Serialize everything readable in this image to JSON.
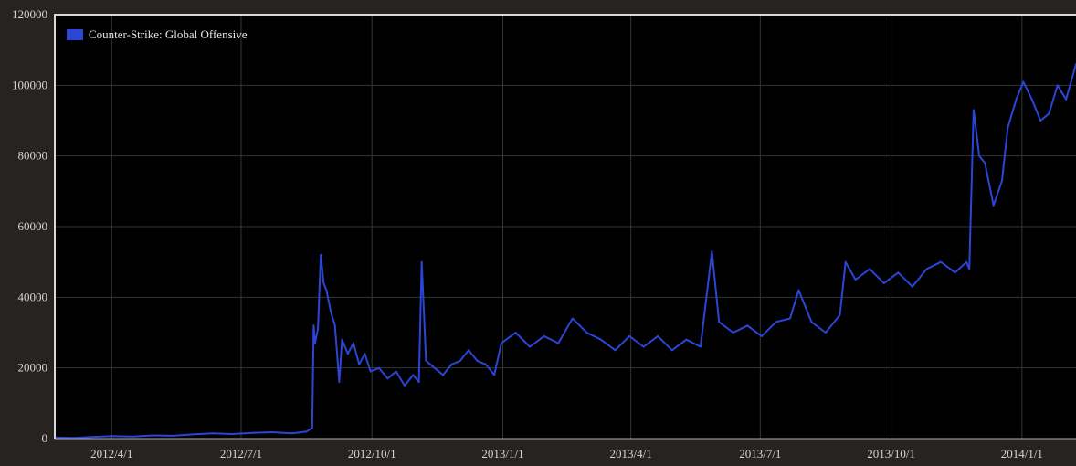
{
  "chart_data": {
    "type": "line",
    "title": "",
    "xlabel": "",
    "ylabel": "",
    "ylim": [
      0,
      120000
    ],
    "xlim": [
      "2012-02-21",
      "2014-02-08"
    ],
    "grid": true,
    "legend_position": "top-left",
    "y_ticks": [
      "0",
      "20000",
      "40000",
      "60000",
      "80000",
      "100000",
      "120000"
    ],
    "x_ticks": [
      {
        "date": "2012-04-01",
        "label": "2012/4/1"
      },
      {
        "date": "2012-07-01",
        "label": "2012/7/1"
      },
      {
        "date": "2012-10-01",
        "label": "2012/10/1"
      },
      {
        "date": "2013-01-01",
        "label": "2013/1/1"
      },
      {
        "date": "2013-04-01",
        "label": "2013/4/1"
      },
      {
        "date": "2013-07-01",
        "label": "2013/7/1"
      },
      {
        "date": "2013-10-01",
        "label": "2013/10/1"
      },
      {
        "date": "2014-01-01",
        "label": "2014/1/1"
      }
    ],
    "colors": {
      "line": "#2b45d6",
      "legend_swatch": "#2b45d6",
      "background": "#000000",
      "frame": "#d8d8d8"
    },
    "series": [
      {
        "name": "Counter-Strike: Global Offensive",
        "points": [
          [
            "2012-02-21",
            300
          ],
          [
            "2012-03-05",
            200
          ],
          [
            "2012-03-19",
            500
          ],
          [
            "2012-04-02",
            700
          ],
          [
            "2012-04-16",
            600
          ],
          [
            "2012-04-30",
            900
          ],
          [
            "2012-05-14",
            800
          ],
          [
            "2012-05-28",
            1200
          ],
          [
            "2012-06-11",
            1500
          ],
          [
            "2012-06-25",
            1300
          ],
          [
            "2012-07-09",
            1600
          ],
          [
            "2012-07-23",
            1800
          ],
          [
            "2012-08-06",
            1500
          ],
          [
            "2012-08-16",
            2000
          ],
          [
            "2012-08-20",
            3000
          ],
          [
            "2012-08-21",
            32000
          ],
          [
            "2012-08-22",
            27000
          ],
          [
            "2012-08-24",
            31000
          ],
          [
            "2012-08-26",
            52000
          ],
          [
            "2012-08-28",
            44000
          ],
          [
            "2012-08-30",
            42000
          ],
          [
            "2012-09-02",
            36000
          ],
          [
            "2012-09-05",
            32000
          ],
          [
            "2012-09-08",
            16000
          ],
          [
            "2012-09-10",
            28000
          ],
          [
            "2012-09-14",
            24000
          ],
          [
            "2012-09-18",
            27000
          ],
          [
            "2012-09-22",
            21000
          ],
          [
            "2012-09-26",
            24000
          ],
          [
            "2012-09-30",
            19000
          ],
          [
            "2012-10-06",
            20000
          ],
          [
            "2012-10-12",
            17000
          ],
          [
            "2012-10-18",
            19000
          ],
          [
            "2012-10-24",
            15000
          ],
          [
            "2012-10-30",
            18000
          ],
          [
            "2012-11-03",
            16000
          ],
          [
            "2012-11-05",
            50000
          ],
          [
            "2012-11-08",
            22000
          ],
          [
            "2012-11-14",
            20000
          ],
          [
            "2012-11-20",
            18000
          ],
          [
            "2012-11-26",
            21000
          ],
          [
            "2012-12-02",
            22000
          ],
          [
            "2012-12-08",
            25000
          ],
          [
            "2012-12-14",
            22000
          ],
          [
            "2012-12-20",
            21000
          ],
          [
            "2012-12-26",
            18000
          ],
          [
            "2012-12-31",
            27000
          ],
          [
            "2013-01-10",
            30000
          ],
          [
            "2013-01-20",
            26000
          ],
          [
            "2013-01-30",
            29000
          ],
          [
            "2013-02-09",
            27000
          ],
          [
            "2013-02-19",
            34000
          ],
          [
            "2013-03-01",
            30000
          ],
          [
            "2013-03-11",
            28000
          ],
          [
            "2013-03-21",
            25000
          ],
          [
            "2013-03-31",
            29000
          ],
          [
            "2013-04-10",
            26000
          ],
          [
            "2013-04-20",
            29000
          ],
          [
            "2013-04-30",
            25000
          ],
          [
            "2013-05-10",
            28000
          ],
          [
            "2013-05-20",
            26000
          ],
          [
            "2013-05-28",
            53000
          ],
          [
            "2013-06-02",
            33000
          ],
          [
            "2013-06-12",
            30000
          ],
          [
            "2013-06-22",
            32000
          ],
          [
            "2013-07-02",
            29000
          ],
          [
            "2013-07-12",
            33000
          ],
          [
            "2013-07-22",
            34000
          ],
          [
            "2013-07-28",
            42000
          ],
          [
            "2013-08-06",
            33000
          ],
          [
            "2013-08-16",
            30000
          ],
          [
            "2013-08-26",
            35000
          ],
          [
            "2013-08-30",
            50000
          ],
          [
            "2013-09-06",
            45000
          ],
          [
            "2013-09-16",
            48000
          ],
          [
            "2013-09-26",
            44000
          ],
          [
            "2013-10-06",
            47000
          ],
          [
            "2013-10-16",
            43000
          ],
          [
            "2013-10-26",
            48000
          ],
          [
            "2013-11-05",
            50000
          ],
          [
            "2013-11-15",
            47000
          ],
          [
            "2013-11-23",
            50000
          ],
          [
            "2013-11-25",
            48000
          ],
          [
            "2013-11-28",
            93000
          ],
          [
            "2013-12-02",
            80000
          ],
          [
            "2013-12-06",
            78000
          ],
          [
            "2013-12-12",
            66000
          ],
          [
            "2013-12-18",
            73000
          ],
          [
            "2013-12-22",
            88000
          ],
          [
            "2013-12-28",
            96000
          ],
          [
            "2014-01-02",
            101000
          ],
          [
            "2014-01-08",
            96000
          ],
          [
            "2014-01-14",
            90000
          ],
          [
            "2014-01-20",
            92000
          ],
          [
            "2014-01-26",
            100000
          ],
          [
            "2014-02-01",
            96000
          ],
          [
            "2014-02-08",
            106000
          ]
        ]
      }
    ]
  }
}
